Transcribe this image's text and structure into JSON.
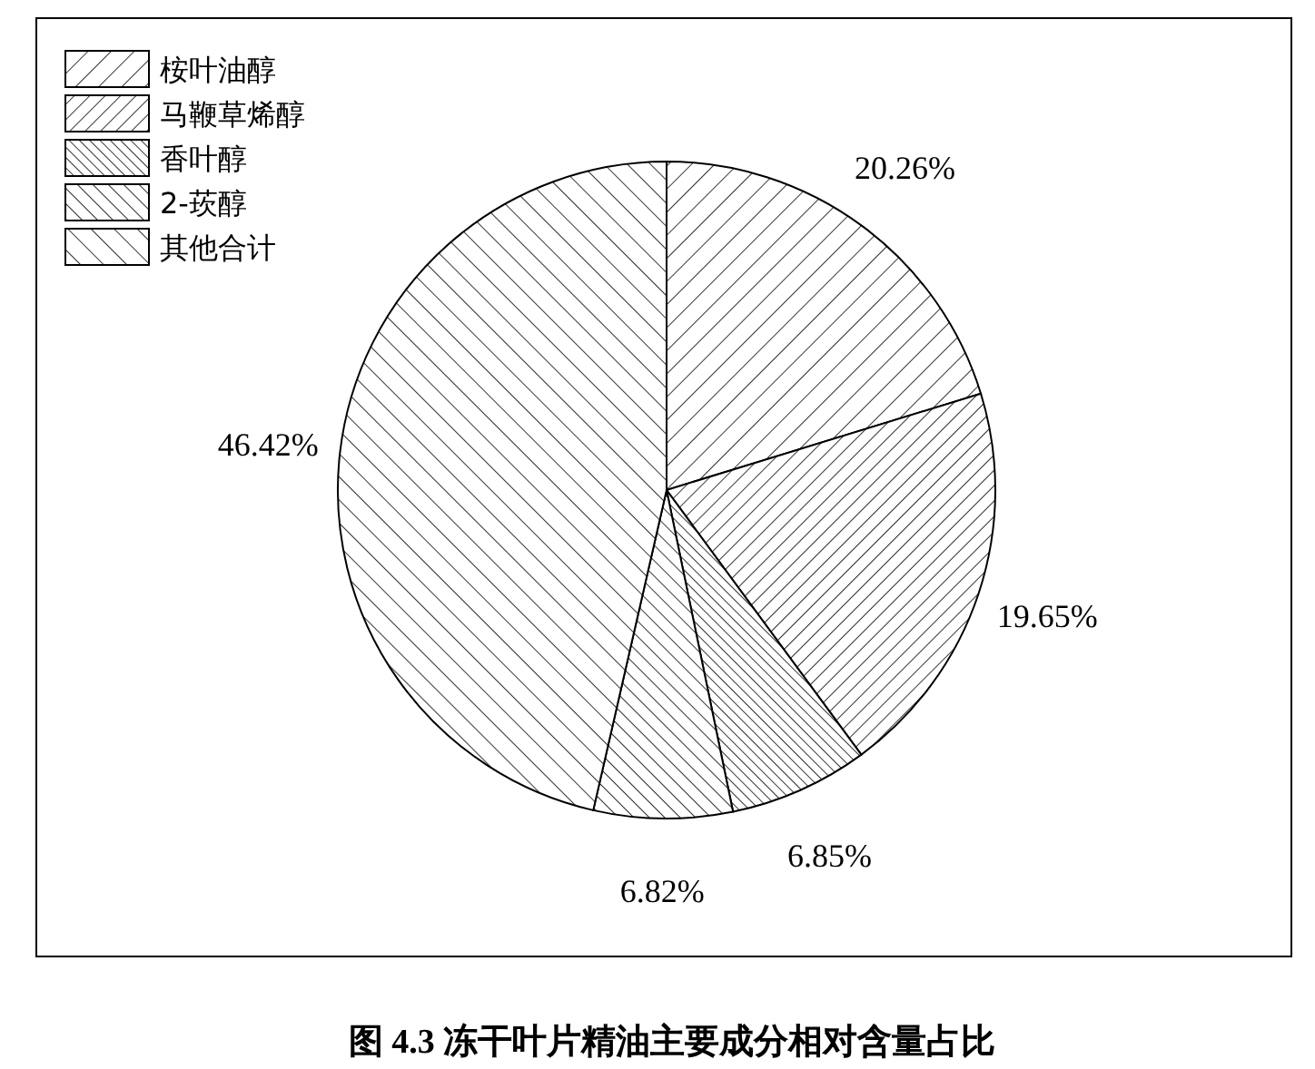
{
  "chart_data": {
    "type": "pie",
    "title": "图 4.3  冻干叶片精油主要成分相对含量占比",
    "categories": [
      "桉叶油醇",
      "马鞭草烯醇",
      "香叶醇",
      "2-莰醇",
      "其他合计"
    ],
    "values": [
      20.26,
      19.65,
      6.85,
      6.82,
      46.42
    ],
    "value_labels": [
      "20.26%",
      "19.65%",
      "6.85%",
      "6.82%",
      "46.42%"
    ],
    "legend": "top left"
  }
}
